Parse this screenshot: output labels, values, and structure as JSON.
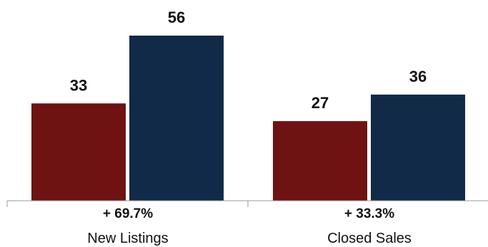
{
  "chart_data": {
    "type": "bar",
    "categories": [
      "New Listings",
      "Closed Sales"
    ],
    "changes": [
      "+ 69.7%",
      "+ 33.3%"
    ],
    "series": [
      {
        "values": [
          33,
          27
        ],
        "color": "#6e1212"
      },
      {
        "values": [
          56,
          36
        ],
        "color": "#112a47"
      }
    ],
    "ylim": [
      0,
      56
    ],
    "grid": false,
    "legend": "none"
  }
}
